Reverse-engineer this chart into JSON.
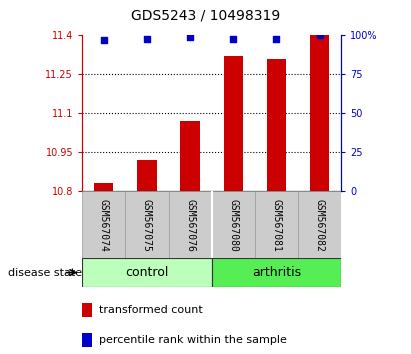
{
  "title": "GDS5243 / 10498319",
  "samples": [
    "GSM567074",
    "GSM567075",
    "GSM567076",
    "GSM567080",
    "GSM567081",
    "GSM567082"
  ],
  "transformed_counts": [
    10.83,
    10.92,
    11.07,
    11.32,
    11.31,
    11.4
  ],
  "percentile_ranks": [
    97,
    98,
    99,
    98,
    98,
    100
  ],
  "ylim_left": [
    10.8,
    11.4
  ],
  "ylim_right": [
    0,
    100
  ],
  "yticks_left": [
    10.8,
    10.95,
    11.1,
    11.25,
    11.4
  ],
  "ytick_labels_left": [
    "10.8",
    "10.95",
    "11.1",
    "11.25",
    "11.4"
  ],
  "yticks_right": [
    0,
    25,
    50,
    75,
    100
  ],
  "ytick_labels_right": [
    "0",
    "25",
    "50",
    "75",
    "100%"
  ],
  "groups": [
    {
      "label": "control",
      "indices": [
        0,
        1,
        2
      ],
      "color": "#bbffbb"
    },
    {
      "label": "arthritis",
      "indices": [
        3,
        4,
        5
      ],
      "color": "#55ee55"
    }
  ],
  "bar_color": "#cc0000",
  "dot_color": "#0000cc",
  "bar_width": 0.45,
  "disease_state_label": "disease state",
  "legend_items": [
    {
      "color": "#cc0000",
      "label": "transformed count"
    },
    {
      "color": "#0000cc",
      "label": "percentile rank within the sample"
    }
  ],
  "grid_color": "#000000",
  "grid_linewidth": 0.8,
  "background_color": "#ffffff",
  "tick_area_bg": "#cccccc",
  "title_fontsize": 10,
  "tick_label_fontsize": 7,
  "axis_label_fontsize": 8,
  "group_label_fontsize": 9,
  "legend_fontsize": 8
}
